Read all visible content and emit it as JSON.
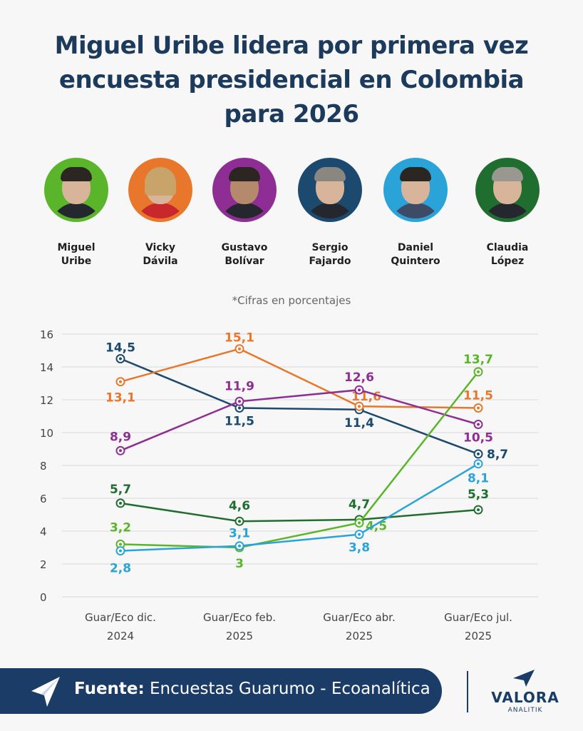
{
  "title": {
    "line1": "Miguel Uribe lidera por primera vez",
    "line2": "encuesta presidencial en Colombia",
    "line3": "para 2026"
  },
  "candidates": [
    {
      "name": "Miguel\nUribe",
      "color": "#5bb52a"
    },
    {
      "name": "Vicky\nDávila",
      "color": "#e8772b"
    },
    {
      "name": "Gustavo\nBolívar",
      "color": "#8e2d93"
    },
    {
      "name": "Sergio\nFajardo",
      "color": "#1b4a6e"
    },
    {
      "name": "Daniel\nQuintero",
      "color": "#2aa3d8"
    },
    {
      "name": "Claudia\nLópez",
      "color": "#1f6e2f"
    }
  ],
  "note": "*Cifras en porcentajes",
  "chart_data": {
    "type": "line",
    "categories": [
      "Guar/Eco dic.\n2024",
      "Guar/Eco feb.\n2025",
      "Guar/Eco abr.\n2025",
      "Guar/Eco jul.\n2025"
    ],
    "ylim": [
      0,
      16
    ],
    "yticks": [
      "0",
      "2",
      "4",
      "6",
      "8",
      "10",
      "12",
      "14",
      "16"
    ],
    "grid": true,
    "series": [
      {
        "name": "Sergio Fajardo",
        "color": "#1b4a6e",
        "values": [
          14.5,
          11.5,
          11.4,
          8.7
        ],
        "labels": [
          "14,5",
          "11,5",
          "11,4",
          "8,7"
        ]
      },
      {
        "name": "Vicky Dávila",
        "color": "#e8772b",
        "values": [
          13.1,
          15.1,
          11.6,
          11.5
        ],
        "labels": [
          "13,1",
          "15,1",
          "11,6",
          "11,5"
        ]
      },
      {
        "name": "Gustavo Bolívar",
        "color": "#8e2d93",
        "values": [
          8.9,
          11.9,
          12.6,
          10.5
        ],
        "labels": [
          "8,9",
          "11,9",
          "12,6",
          "10,5"
        ]
      },
      {
        "name": "Claudia López",
        "color": "#1f6e2f",
        "values": [
          5.7,
          4.6,
          4.7,
          5.3
        ],
        "labels": [
          "5,7",
          "4,6",
          "4,7",
          "5,3"
        ]
      },
      {
        "name": "Miguel Uribe",
        "color": "#5bb52a",
        "values": [
          3.2,
          3,
          4.5,
          13.7
        ],
        "labels": [
          "3,2",
          "3",
          "4,5",
          "13,7"
        ]
      },
      {
        "name": "Daniel Quintero",
        "color": "#2aa3d8",
        "values": [
          2.8,
          3.1,
          3.8,
          8.1
        ],
        "labels": [
          "2,8",
          "3,1",
          "3,8",
          "8,1"
        ]
      }
    ]
  },
  "footer": {
    "source_label": "Fuente:",
    "source_text": " Encuestas Guarumo - Ecoanalítica",
    "brand": "VALORA",
    "brand_sub": "ANALITIK"
  }
}
